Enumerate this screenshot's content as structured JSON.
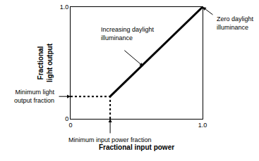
{
  "chart_data": {
    "type": "line",
    "xlabel": "Fractional input power",
    "ylabel": "Fractional\nlight output",
    "series": [
      {
        "x": [
          0.3,
          1.0
        ],
        "values": [
          0.2,
          1.0
        ],
        "color": "#000000",
        "line_style": "solid"
      },
      {
        "x": [
          0,
          0.3
        ],
        "values": [
          0.2,
          0.2
        ],
        "color": "#000000",
        "line_style": "dotted"
      },
      {
        "x": [
          0.3,
          0.3
        ],
        "values": [
          0,
          0.2
        ],
        "color": "#000000",
        "line_style": "dotted"
      }
    ],
    "annotations": [
      "Increasing daylight\nilluminance",
      "Zero daylight\nilluminance",
      "Minimum light\noutput fraction",
      "Minimum input power fraction"
    ],
    "xlim": [
      0,
      1.0
    ],
    "ylim": [
      0,
      1.0
    ],
    "xticks": [
      0,
      {
        "value": 1.0,
        "label": "1.0"
      }
    ],
    "yticks": [
      0,
      {
        "value": 1.0,
        "label": "1.0"
      }
    ],
    "grid": false
  }
}
